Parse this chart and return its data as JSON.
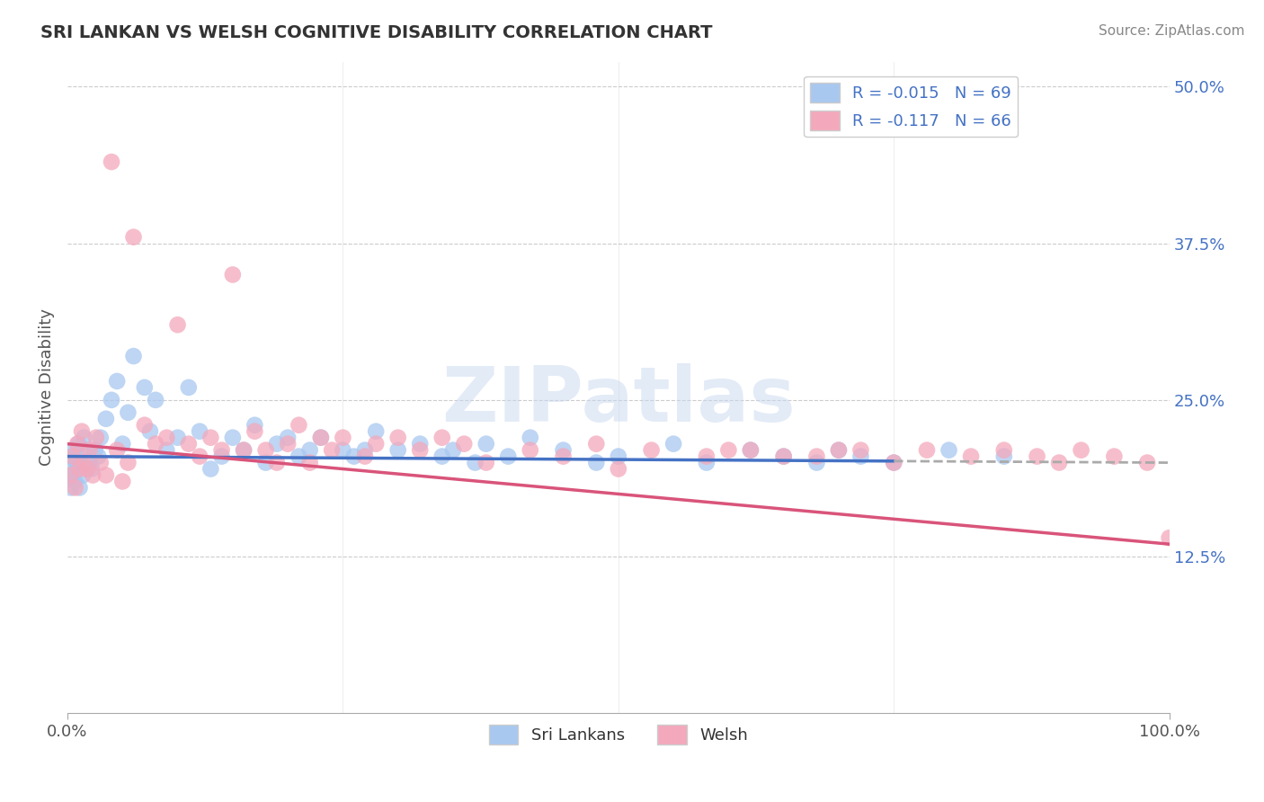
{
  "title": "SRI LANKAN VS WELSH COGNITIVE DISABILITY CORRELATION CHART",
  "source": "Source: ZipAtlas.com",
  "ylabel": "Cognitive Disability",
  "xlim": [
    0.0,
    100.0
  ],
  "ylim": [
    0.0,
    52.0
  ],
  "ytick_positions": [
    12.5,
    25.0,
    37.5,
    50.0
  ],
  "ytick_labels": [
    "12.5%",
    "25.0%",
    "37.5%",
    "50.0%"
  ],
  "sri_lankan_color": "#A8C8F0",
  "welsh_color": "#F4A8BC",
  "sri_lankan_R": -0.015,
  "sri_lankan_N": 69,
  "welsh_R": -0.117,
  "welsh_N": 66,
  "sri_lankan_line_color": "#4472C4",
  "welsh_line_color": "#D9547A",
  "legend_label_color": "#4472C4",
  "background_color": "#FFFFFF",
  "grid_color": "#CCCCCC",
  "watermark_color": "#C8D8F0",
  "sri_lankans_x": [
    0.2,
    0.3,
    0.4,
    0.5,
    0.6,
    0.7,
    0.8,
    0.9,
    1.0,
    1.1,
    1.2,
    1.4,
    1.5,
    1.7,
    1.8,
    2.0,
    2.2,
    2.5,
    2.8,
    3.0,
    3.5,
    4.0,
    4.5,
    5.0,
    5.5,
    6.0,
    7.0,
    7.5,
    8.0,
    9.0,
    10.0,
    11.0,
    12.0,
    13.0,
    14.0,
    15.0,
    16.0,
    17.0,
    18.0,
    19.0,
    20.0,
    21.0,
    22.0,
    23.0,
    25.0,
    26.0,
    27.0,
    28.0,
    30.0,
    32.0,
    34.0,
    35.0,
    37.0,
    38.0,
    40.0,
    42.0,
    45.0,
    48.0,
    50.0,
    55.0,
    58.0,
    62.0,
    65.0,
    68.0,
    70.0,
    72.0,
    75.0,
    80.0,
    85.0
  ],
  "sri_lankans_y": [
    19.5,
    18.0,
    20.5,
    19.0,
    21.0,
    18.5,
    20.0,
    19.5,
    21.5,
    18.0,
    20.0,
    19.0,
    22.0,
    19.5,
    21.0,
    20.0,
    19.5,
    21.0,
    20.5,
    22.0,
    23.5,
    25.0,
    26.5,
    21.5,
    24.0,
    28.5,
    26.0,
    22.5,
    25.0,
    21.0,
    22.0,
    26.0,
    22.5,
    19.5,
    20.5,
    22.0,
    21.0,
    23.0,
    20.0,
    21.5,
    22.0,
    20.5,
    21.0,
    22.0,
    21.0,
    20.5,
    21.0,
    22.5,
    21.0,
    21.5,
    20.5,
    21.0,
    20.0,
    21.5,
    20.5,
    22.0,
    21.0,
    20.0,
    20.5,
    21.5,
    20.0,
    21.0,
    20.5,
    20.0,
    21.0,
    20.5,
    20.0,
    21.0,
    20.5
  ],
  "welsh_x": [
    0.3,
    0.5,
    0.7,
    0.9,
    1.1,
    1.3,
    1.5,
    1.8,
    2.0,
    2.3,
    2.6,
    3.0,
    3.5,
    4.0,
    4.5,
    5.0,
    5.5,
    6.0,
    7.0,
    8.0,
    9.0,
    10.0,
    11.0,
    12.0,
    13.0,
    14.0,
    15.0,
    16.0,
    17.0,
    18.0,
    19.0,
    20.0,
    21.0,
    22.0,
    23.0,
    24.0,
    25.0,
    27.0,
    28.0,
    30.0,
    32.0,
    34.0,
    36.0,
    38.0,
    42.0,
    45.0,
    48.0,
    50.0,
    53.0,
    58.0,
    60.0,
    62.0,
    65.0,
    68.0,
    70.0,
    72.0,
    75.0,
    78.0,
    82.0,
    85.0,
    88.0,
    90.0,
    92.0,
    95.0,
    98.0,
    100.0
  ],
  "welsh_y": [
    19.0,
    20.5,
    18.0,
    21.5,
    19.5,
    22.5,
    20.0,
    19.5,
    21.0,
    19.0,
    22.0,
    20.0,
    19.0,
    44.0,
    21.0,
    18.5,
    20.0,
    38.0,
    23.0,
    21.5,
    22.0,
    31.0,
    21.5,
    20.5,
    22.0,
    21.0,
    35.0,
    21.0,
    22.5,
    21.0,
    20.0,
    21.5,
    23.0,
    20.0,
    22.0,
    21.0,
    22.0,
    20.5,
    21.5,
    22.0,
    21.0,
    22.0,
    21.5,
    20.0,
    21.0,
    20.5,
    21.5,
    19.5,
    21.0,
    20.5,
    21.0,
    21.0,
    20.5,
    20.5,
    21.0,
    21.0,
    20.0,
    21.0,
    20.5,
    21.0,
    20.5,
    20.0,
    21.0,
    20.5,
    20.0,
    14.0
  ]
}
